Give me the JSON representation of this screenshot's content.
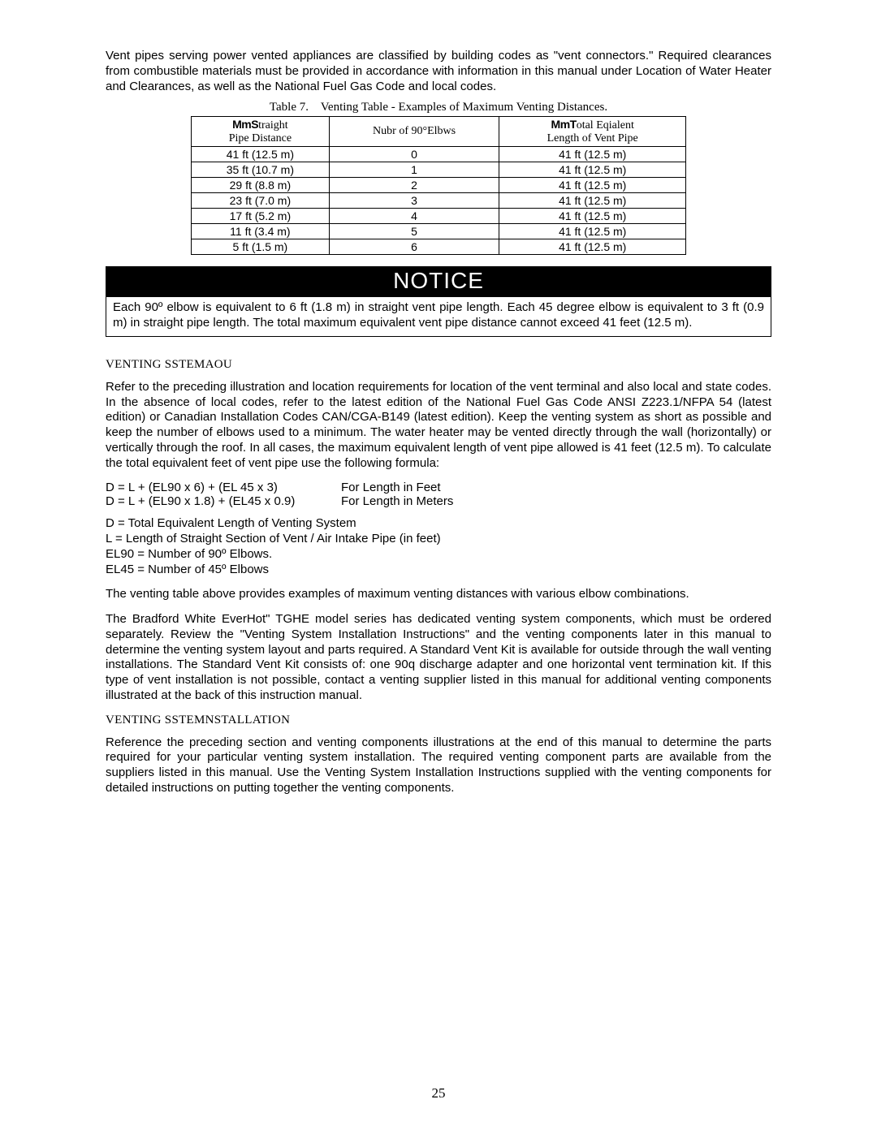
{
  "intro": "Vent pipes serving power vented appliances are classified by building codes as \"vent connectors.\" Required clearances from combustible materials must be provided in accordance with information in this manual under Location of Water Heater and Clearances, as well as the National Fuel Gas Code and local codes.",
  "table": {
    "caption_label": "Table 7.",
    "caption_text": "Venting Table - Examples of Maximum Venting Distances.",
    "headers": {
      "col1_strong": "MmS",
      "col1_rest": "traight",
      "col1_line2": "Pipe Distance",
      "col2_pre": "Nubr",
      "col2_rest": " of 90°Elbws",
      "col3_strong": "MmT",
      "col3_rest": "otal Eqialent",
      "col3_line2": "Length of Vent Pipe"
    },
    "rows": [
      {
        "c1": "41 ft (12.5 m)",
        "c2": "0",
        "c3": "41 ft (12.5 m)"
      },
      {
        "c1": "35 ft (10.7 m)",
        "c2": "1",
        "c3": "41 ft (12.5 m)"
      },
      {
        "c1": "29 ft (8.8 m)",
        "c2": "2",
        "c3": "41 ft (12.5 m)"
      },
      {
        "c1": "23 ft (7.0 m)",
        "c2": "3",
        "c3": "41 ft (12.5 m)"
      },
      {
        "c1": "17 ft (5.2 m)",
        "c2": "4",
        "c3": "41 ft (12.5 m)"
      },
      {
        "c1": "11 ft (3.4 m)",
        "c2": "5",
        "c3": "41 ft (12.5 m)"
      },
      {
        "c1": "5 ft (1.5 m)",
        "c2": "6",
        "c3": "41 ft (12.5 m)"
      }
    ],
    "col_widths": {
      "c1": "170px",
      "c2": "210px",
      "c3": "230px"
    },
    "border_color": "#000000"
  },
  "notice": {
    "title": "NOTICE",
    "body": "Each 90º elbow is equivalent to 6 ft (1.8 m) in straight vent pipe length.  Each 45 degree elbow is equivalent to 3 ft (0.9 m) in straight pipe length.  The total maximum equivalent vent pipe distance cannot exceed 41 feet (12.5 m)."
  },
  "layout_heading": "VENTING SSTEMAOU",
  "layout_para": "Refer to the preceding illustration and location requirements for location of the vent terminal and also local and state codes.  In the absence of local codes, refer to the latest edition of the National Fuel Gas Code ANSI Z223.1/NFPA 54 (latest edition) or Canadian Installation Codes CAN/CGA-B149 (latest edition).  Keep the venting system as short as possible and keep the number of elbows used to a minimum.  The water heater may be vented directly through the wall (horizontally) or vertically through the roof.  In all cases, the maximum equivalent length of vent pipe allowed is 41 feet (12.5 m).  To calculate the total equivalent feet of vent pipe use the following formula:",
  "formulas": {
    "f1_left": "D = L + (EL90 x 6) + (EL 45 x 3)",
    "f1_right": "For Length in Feet",
    "f2_left": "D = L + (EL90 x 1.8) + (EL45 x 0.9)",
    "f2_right": "For Length in Meters"
  },
  "defs": {
    "d1": "D = Total Equivalent Length of Venting System",
    "d2": "L = Length of Straight Section of Vent / Air Intake Pipe (in feet)",
    "d3": "EL90 = Number of 90º Elbows.",
    "d4": "EL45 = Number of 45º Elbows"
  },
  "para_after_defs": "The venting table above provides examples of maximum venting distances with various elbow combinations.",
  "bradford_para": "The Bradford White EverHot\" TGHE model series has dedicated venting system components, which must be ordered separately.  Review the \"Venting System Installation Instructions\" and the venting components later in this manual to determine the venting system layout and parts required.  A Standard Vent Kit is available for outside through the wall venting installations.  The Standard Vent Kit consists of: one 90q discharge adapter and one horizontal vent termination kit.  If this type of vent installation is not possible, contact a venting supplier listed in this manual for additional venting components illustrated at the back of this instruction manual.",
  "install_heading": "VENTING SSTEMNSTALLATION",
  "install_para": "Reference the preceding section and venting components illustrations at the end of this manual to determine the parts required for your particular venting system installation.  The required venting component parts are available from the suppliers listed in this manual.  Use the Venting System Installation Instructions supplied with the venting components for detailed instructions on putting together the venting components.",
  "page_number": "25",
  "colors": {
    "text": "#000000",
    "bg": "#ffffff",
    "notice_bg": "#000000",
    "notice_fg": "#ffffff"
  }
}
